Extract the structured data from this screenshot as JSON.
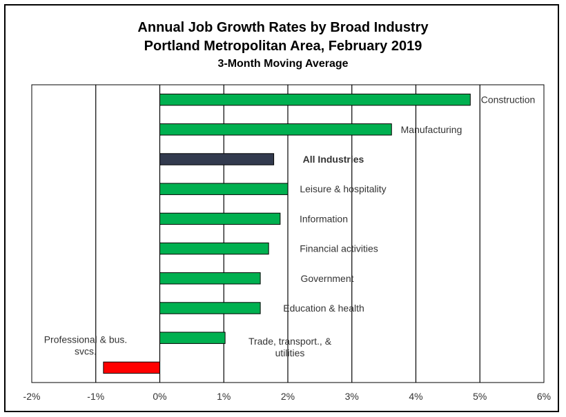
{
  "chart_data": {
    "type": "bar",
    "orientation": "horizontal",
    "title": "Annual Job Growth Rates by Broad Industry",
    "title_line2": "Portland Metropolitan Area, February 2019",
    "subtitle": "3-Month Moving Average",
    "xlim": [
      -2,
      6
    ],
    "xticks": [
      "-2%",
      "-1%",
      "0%",
      "1%",
      "2%",
      "3%",
      "4%",
      "5%",
      "6%"
    ],
    "grid": "vertical-major",
    "legend": "none",
    "categories": [
      "Construction",
      "Manufacturing",
      "All Industries",
      "Leisure & hospitality",
      "Information",
      "Financial activities",
      "Government",
      "Education & health",
      "Trade, transport., & utilities",
      "Professional & bus. svcs."
    ],
    "values": [
      4.85,
      3.62,
      1.78,
      2.0,
      1.88,
      1.7,
      1.57,
      1.57,
      1.02,
      -0.88
    ],
    "bar_colors": [
      "#00B050",
      "#00B050",
      "#323A4E",
      "#00B050",
      "#00B050",
      "#00B050",
      "#00B050",
      "#00B050",
      "#00B050",
      "#FF0000"
    ],
    "emphasized": "All Industries"
  }
}
